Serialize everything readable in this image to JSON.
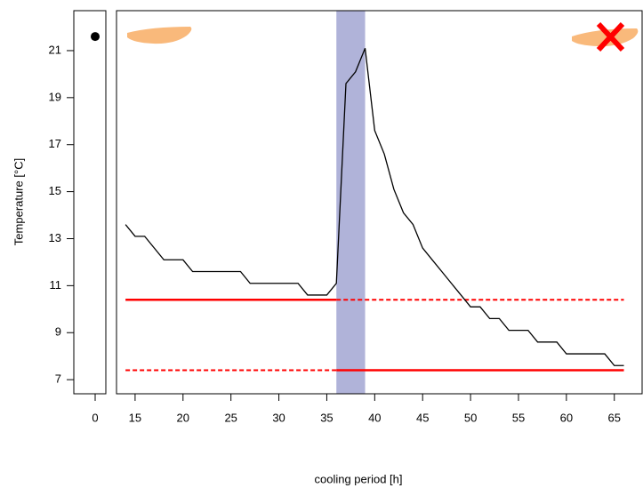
{
  "chart_data": [
    {
      "type": "scatter",
      "y_label": "Temperature [°C]",
      "x": [
        0
      ],
      "values": [
        21.6
      ],
      "color": "#000000",
      "xlim": [
        -2.2,
        1.1
      ],
      "xticks": [
        0
      ],
      "ylim": [
        6.4,
        22.7
      ],
      "yticks": [
        7,
        9,
        11,
        13,
        15,
        17,
        19,
        21
      ]
    },
    {
      "type": "line",
      "x_label": "cooling period [h]",
      "x": [
        14,
        15,
        16,
        18,
        20,
        21,
        26,
        27,
        32,
        33,
        35,
        36,
        37,
        38,
        39,
        40,
        41,
        42,
        43,
        44,
        45,
        46,
        47,
        48,
        49,
        50,
        51,
        52,
        53,
        54,
        56,
        57,
        59,
        60,
        64,
        65,
        66
      ],
      "series": [
        {
          "color": "#000000",
          "values": [
            13.6,
            13.1,
            13.1,
            12.1,
            12.1,
            11.6,
            11.6,
            11.1,
            11.1,
            10.6,
            10.6,
            11.1,
            19.6,
            20.1,
            21.1,
            17.6,
            16.6,
            15.1,
            14.1,
            13.6,
            12.6,
            12.1,
            11.6,
            11.1,
            10.6,
            10.1,
            10.1,
            9.6,
            9.6,
            9.1,
            9.1,
            8.6,
            8.6,
            8.1,
            8.1,
            7.6,
            7.6
          ]
        }
      ],
      "band": {
        "x": [
          36,
          39
        ],
        "color": "#b0b3d9"
      },
      "hlines": [
        {
          "value": 10.4,
          "color": "#ff0000",
          "solid": [
            14,
            36
          ],
          "dashed": [
            36,
            66
          ]
        },
        {
          "value": 7.4,
          "color": "#ff0000",
          "solid": [
            36,
            66
          ],
          "dashed": [
            14,
            36
          ]
        }
      ],
      "xlim": [
        13.06,
        67.9
      ],
      "xticks": [
        15,
        20,
        25,
        30,
        35,
        40,
        45,
        50,
        55,
        60,
        65
      ],
      "ylim": [
        6.4,
        22.7
      ]
    }
  ]
}
